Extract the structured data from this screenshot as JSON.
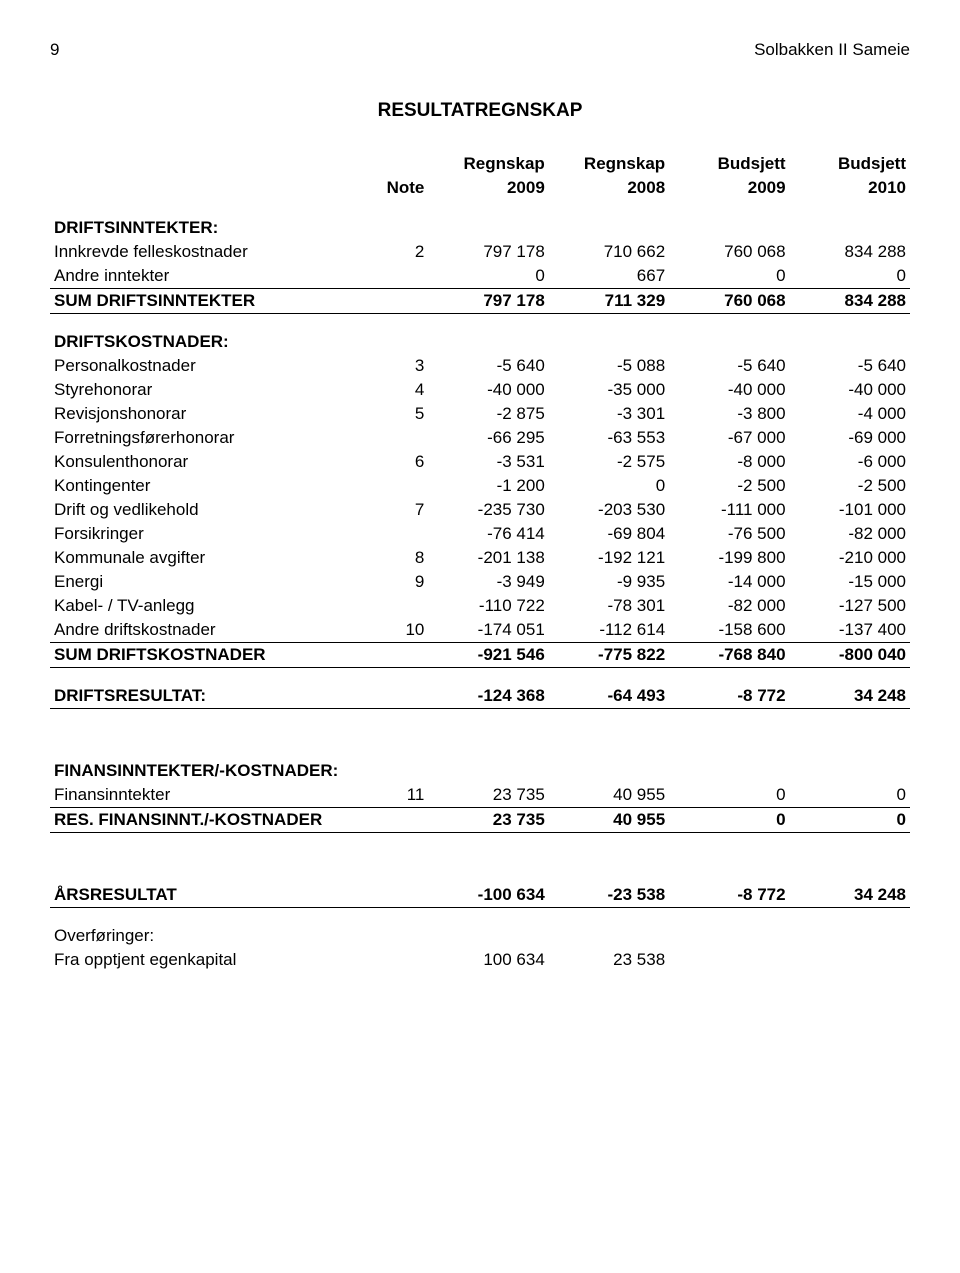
{
  "page_number": "9",
  "doc_title": "Solbakken II Sameie",
  "title": "RESULTATREGNSKAP",
  "col_headers": {
    "note": "Note",
    "c1a": "Regnskap",
    "c1b": "2009",
    "c2a": "Regnskap",
    "c2b": "2008",
    "c3a": "Budsjett",
    "c3b": "2009",
    "c4a": "Budsjett",
    "c4b": "2010"
  },
  "sections": {
    "driftsinnt_hdr": "DRIFTSINNTEKTER:",
    "driftskost_hdr": "DRIFTSKOSTNADER:",
    "finans_hdr": "FINANSINNTEKTER/-KOSTNADER:",
    "overf_hdr": "Overføringer:"
  },
  "rows": {
    "innkrevde": {
      "label": "Innkrevde felleskostnader",
      "note": "2",
      "v": [
        "797 178",
        "710 662",
        "760 068",
        "834 288"
      ]
    },
    "andre_inn": {
      "label": "Andre inntekter",
      "note": "",
      "v": [
        "0",
        "667",
        "0",
        "0"
      ]
    },
    "sum_driftsinn": {
      "label": "SUM DRIFTSINNTEKTER",
      "note": "",
      "v": [
        "797 178",
        "711 329",
        "760 068",
        "834 288"
      ]
    },
    "personal": {
      "label": "Personalkostnader",
      "note": "3",
      "v": [
        "-5 640",
        "-5 088",
        "-5 640",
        "-5 640"
      ]
    },
    "styre": {
      "label": "Styrehonorar",
      "note": "4",
      "v": [
        "-40 000",
        "-35 000",
        "-40 000",
        "-40 000"
      ]
    },
    "revisjon": {
      "label": "Revisjonshonorar",
      "note": "5",
      "v": [
        "-2 875",
        "-3 301",
        "-3 800",
        "-4 000"
      ]
    },
    "forretning": {
      "label": "Forretningsførerhonorar",
      "note": "",
      "v": [
        "-66 295",
        "-63 553",
        "-67 000",
        "-69 000"
      ]
    },
    "konsulent": {
      "label": "Konsulenthonorar",
      "note": "6",
      "v": [
        "-3 531",
        "-2 575",
        "-8 000",
        "-6 000"
      ]
    },
    "kontingent": {
      "label": "Kontingenter",
      "note": "",
      "v": [
        "-1 200",
        "0",
        "-2 500",
        "-2 500"
      ]
    },
    "drift_vedl": {
      "label": "Drift og vedlikehold",
      "note": "7",
      "v": [
        "-235 730",
        "-203 530",
        "-111 000",
        "-101 000"
      ]
    },
    "forsikring": {
      "label": "Forsikringer",
      "note": "",
      "v": [
        "-76 414",
        "-69 804",
        "-76 500",
        "-82 000"
      ]
    },
    "kommunale": {
      "label": "Kommunale avgifter",
      "note": "8",
      "v": [
        "-201 138",
        "-192 121",
        "-199 800",
        "-210 000"
      ]
    },
    "energi": {
      "label": "Energi",
      "note": "9",
      "v": [
        "-3 949",
        "-9 935",
        "-14 000",
        "-15 000"
      ]
    },
    "kabel": {
      "label": "Kabel- / TV-anlegg",
      "note": "",
      "v": [
        "-110 722",
        "-78 301",
        "-82 000",
        "-127 500"
      ]
    },
    "andre_drift": {
      "label": "Andre driftskostnader",
      "note": "10",
      "v": [
        "-174 051",
        "-112 614",
        "-158 600",
        "-137 400"
      ]
    },
    "sum_driftskost": {
      "label": "SUM DRIFTSKOSTNADER",
      "note": "",
      "v": [
        "-921 546",
        "-775 822",
        "-768 840",
        "-800 040"
      ]
    },
    "driftsresultat": {
      "label": "DRIFTSRESULTAT:",
      "note": "",
      "v": [
        "-124 368",
        "-64 493",
        "-8 772",
        "34 248"
      ]
    },
    "finansinnt": {
      "label": "Finansinntekter",
      "note": "11",
      "v": [
        "23 735",
        "40 955",
        "0",
        "0"
      ]
    },
    "res_finans": {
      "label": "RES. FINANSINNT./-KOSTNADER",
      "note": "",
      "v": [
        "23 735",
        "40 955",
        "0",
        "0"
      ]
    },
    "arsresultat": {
      "label": "ÅRSRESULTAT",
      "note": "",
      "v": [
        "-100 634",
        "-23 538",
        "-8 772",
        "34 248"
      ]
    },
    "fra_opptjent": {
      "label": "Fra opptjent egenkapital",
      "note": "",
      "v": [
        "100 634",
        "23 538",
        "",
        ""
      ]
    }
  }
}
